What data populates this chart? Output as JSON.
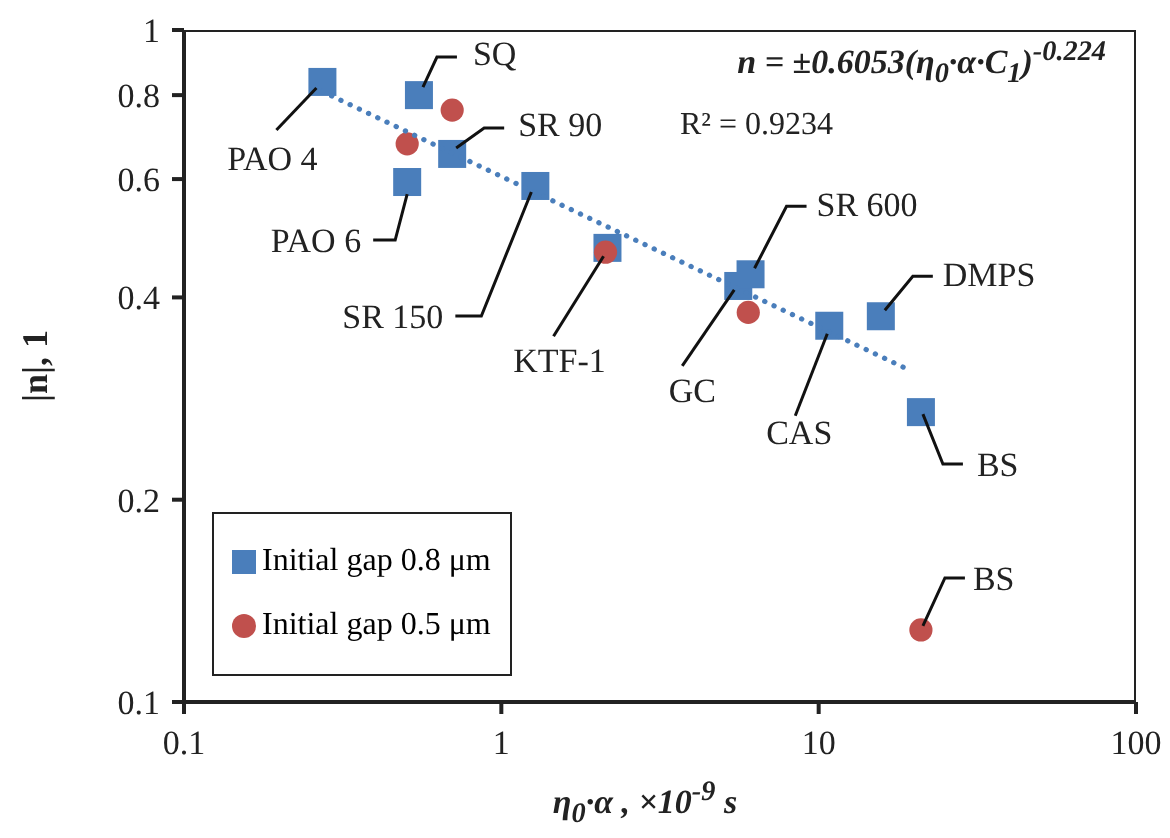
{
  "chart_data": {
    "type": "scatter",
    "xlabel": "η$_{0}$·α , ×10$^{-9}$ s",
    "ylabel": "|n|, 1",
    "log": "xy",
    "xlim": [
      0.1,
      100
    ],
    "xticks": [
      0.1,
      1,
      10,
      100
    ],
    "ylim": [
      0.1,
      1
    ],
    "yticks": [
      0.1,
      0.2,
      0.4,
      0.6,
      0.8,
      1
    ],
    "legend": "bottom left",
    "series": [
      {
        "name": "Initial gap 0.8 μm",
        "color": "#4a7ebb",
        "marker": "square",
        "x": [
          0.273,
          0.55,
          0.7,
          0.505,
          1.28,
          2.16,
          5.58,
          6.1,
          10.8,
          15.7,
          21.0
        ],
        "values": [
          0.837,
          0.8,
          0.654,
          0.594,
          0.586,
          0.474,
          0.416,
          0.433,
          0.363,
          0.375,
          0.27
        ]
      },
      {
        "name": "Initial gap 0.5 μm",
        "color": "#c0504d",
        "marker": "circle",
        "x": [
          0.505,
          0.7,
          2.13,
          6.0,
          21.0
        ],
        "values": [
          0.677,
          0.76,
          0.467,
          0.38,
          0.128
        ]
      },
      {
        "type": "line",
        "color": "#4a7ebb",
        "marker": "none",
        "line_style": "dotted",
        "x": [
          0.273,
          19
        ],
        "values": [
          0.81,
          0.313
        ]
      }
    ],
    "annotations": [
      {
        "text": "PAO 4",
        "x": 0.273,
        "y": 0.837
      },
      {
        "text": "SQ",
        "x": 0.55,
        "y": 0.8
      },
      {
        "text": "SR 90",
        "x": 0.7,
        "y": 0.654
      },
      {
        "text": "PAO 6",
        "x": 0.505,
        "y": 0.594
      },
      {
        "text": "SR 150",
        "x": 1.28,
        "y": 0.586
      },
      {
        "text": "KTF-1",
        "x": 2.13,
        "y": 0.467
      },
      {
        "text": "GC",
        "x": 5.58,
        "y": 0.416
      },
      {
        "text": "SR 600",
        "x": 6.1,
        "y": 0.433
      },
      {
        "text": "CAS",
        "x": 10.8,
        "y": 0.363
      },
      {
        "text": "DMPS",
        "x": 15.7,
        "y": 0.375
      },
      {
        "text": "BS",
        "x": 21.0,
        "y": 0.27
      },
      {
        "text": "BS",
        "x": 21.0,
        "y": 0.128
      },
      "n = ±0.6053(η$_{0}$·α·C$_{1}$)$^{-0.224}$",
      "R² = 0.9234"
    ]
  }
}
